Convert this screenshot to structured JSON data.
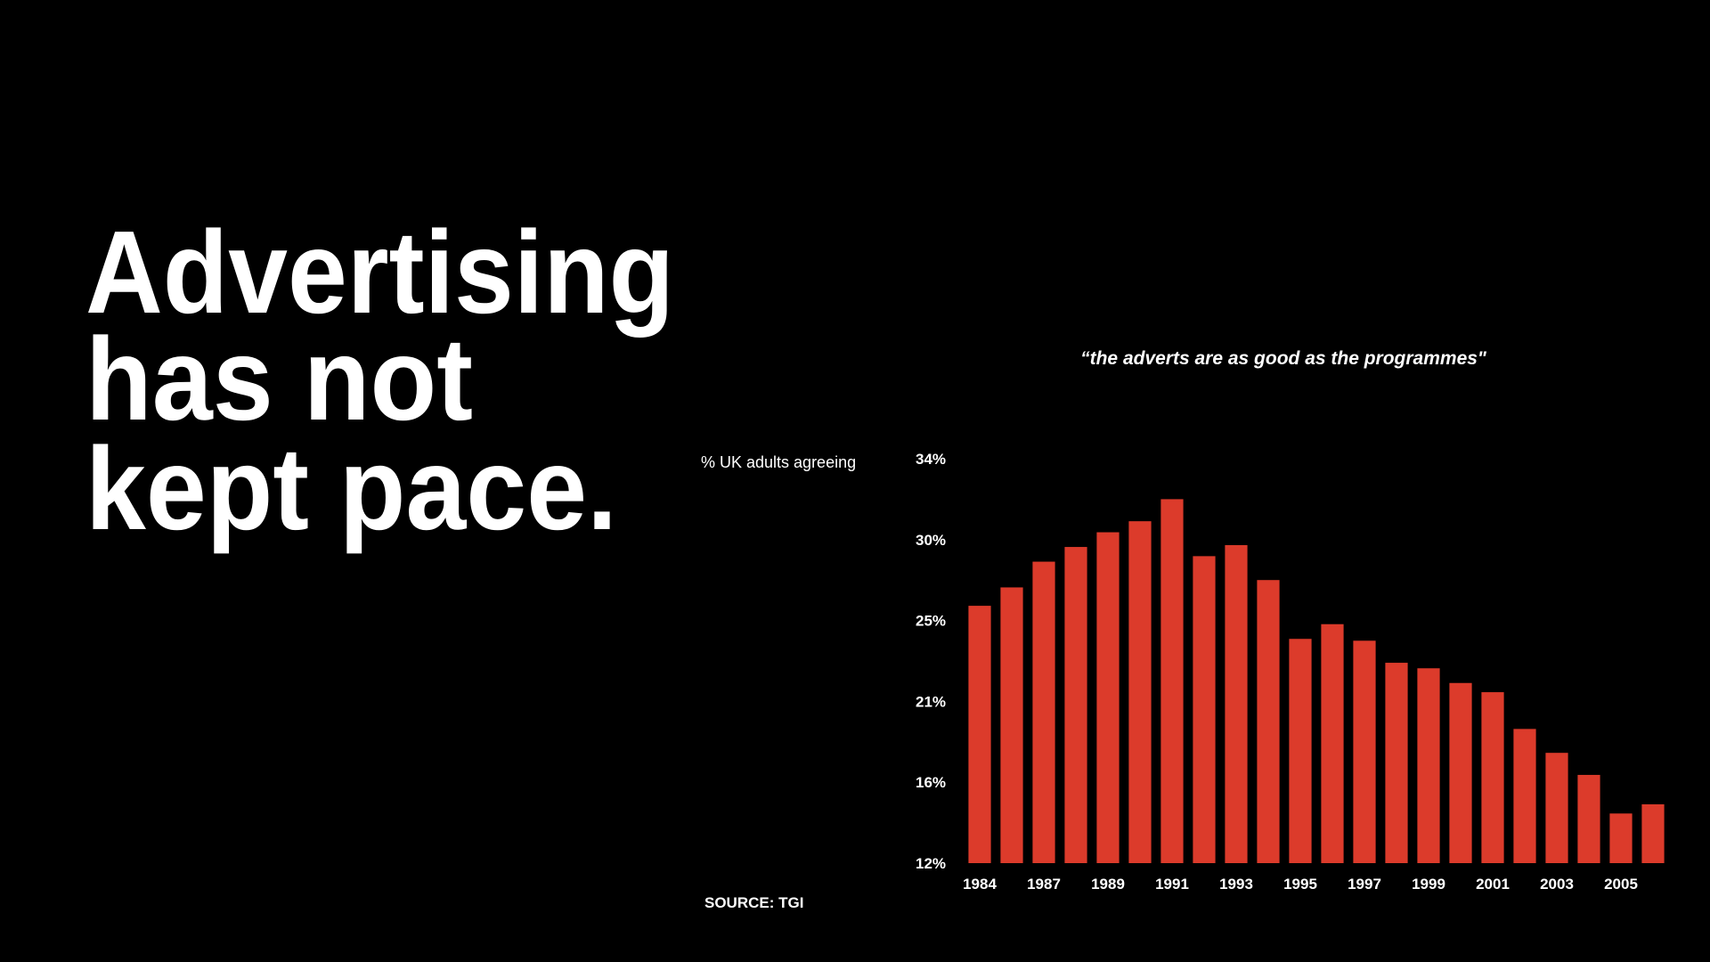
{
  "headline": [
    "Advertising",
    "has not",
    "kept pace."
  ],
  "chart_data": {
    "type": "bar",
    "title": "“the adverts are as good as the programmes\"",
    "y_label": "% UK adults agreeing",
    "source": "SOURCE: TGI",
    "categories": [
      "1984",
      null,
      "1987",
      null,
      "1989",
      null,
      "1991",
      null,
      "1993",
      null,
      "1995",
      null,
      "1997",
      null,
      "1999",
      null,
      "2001",
      null,
      "2003",
      null,
      "2005",
      null
    ],
    "values": [
      26.0,
      27.0,
      28.4,
      29.2,
      30.0,
      30.6,
      31.8,
      28.7,
      29.3,
      27.4,
      24.2,
      25.0,
      24.1,
      22.9,
      22.6,
      21.8,
      21.3,
      19.3,
      18.0,
      16.8,
      14.7,
      15.2
    ],
    "color": "#dc3b2b",
    "ylim": [
      12,
      34
    ],
    "yticks": [
      {
        "value": 12,
        "label": "12%"
      },
      {
        "value": 16.4,
        "label": "16%"
      },
      {
        "value": 20.8,
        "label": "21%"
      },
      {
        "value": 25.2,
        "label": "25%"
      },
      {
        "value": 29.6,
        "label": "30%"
      },
      {
        "value": 34,
        "label": "34%"
      }
    ],
    "grid": false
  }
}
